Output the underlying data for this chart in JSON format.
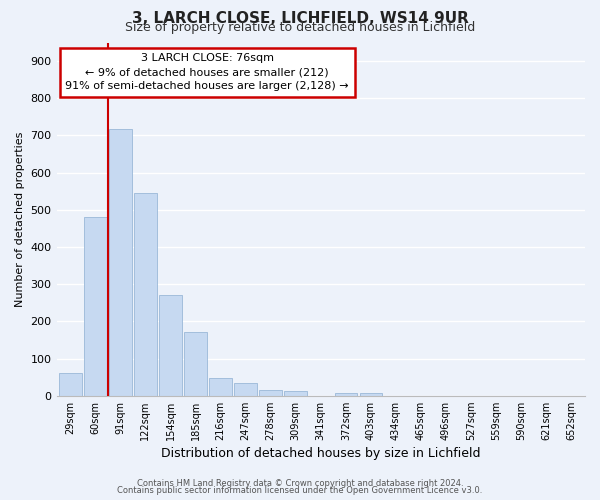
{
  "title": "3, LARCH CLOSE, LICHFIELD, WS14 9UR",
  "subtitle": "Size of property relative to detached houses in Lichfield",
  "xlabel": "Distribution of detached houses by size in Lichfield",
  "ylabel": "Number of detached properties",
  "categories": [
    "29sqm",
    "60sqm",
    "91sqm",
    "122sqm",
    "154sqm",
    "185sqm",
    "216sqm",
    "247sqm",
    "278sqm",
    "309sqm",
    "341sqm",
    "372sqm",
    "403sqm",
    "434sqm",
    "465sqm",
    "496sqm",
    "527sqm",
    "559sqm",
    "590sqm",
    "621sqm",
    "652sqm"
  ],
  "values": [
    62,
    480,
    718,
    544,
    272,
    172,
    47,
    33,
    15,
    12,
    0,
    7,
    7,
    0,
    0,
    0,
    0,
    0,
    0,
    0,
    0
  ],
  "bar_color": "#c6d9f1",
  "bar_edge_color": "#9ab8d8",
  "ylim": [
    0,
    950
  ],
  "yticks": [
    0,
    100,
    200,
    300,
    400,
    500,
    600,
    700,
    800,
    900
  ],
  "marker_color": "#cc0000",
  "annotation_title": "3 LARCH CLOSE: 76sqm",
  "annotation_line1": "← 9% of detached houses are smaller (212)",
  "annotation_line2": "91% of semi-detached houses are larger (2,128) →",
  "annotation_box_color": "#cc0000",
  "footer1": "Contains HM Land Registry data © Crown copyright and database right 2024.",
  "footer2": "Contains public sector information licensed under the Open Government Licence v3.0.",
  "background_color": "#edf2fa",
  "grid_color": "#ffffff"
}
